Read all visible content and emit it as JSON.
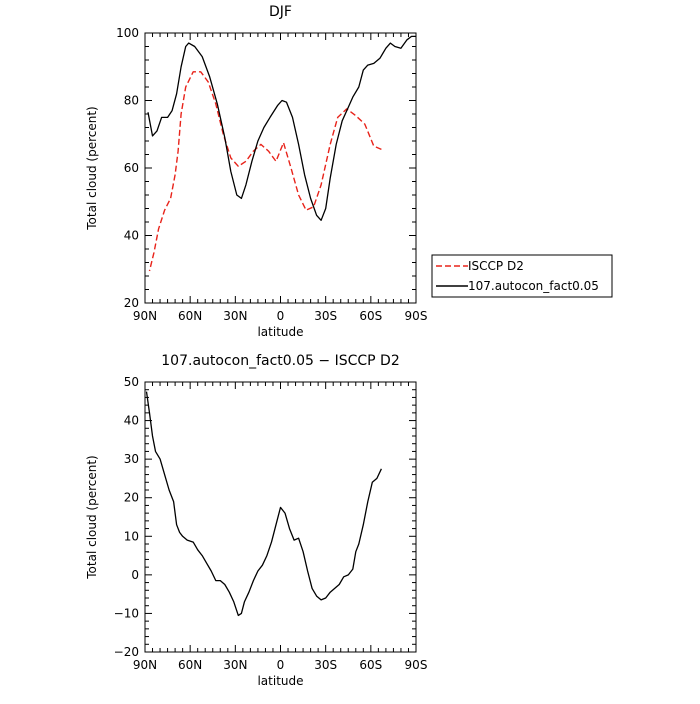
{
  "chart_data": [
    {
      "type": "line",
      "title": "DJF",
      "xlabel": "latitude",
      "ylabel": "Total cloud (percent)",
      "xlim": [
        90,
        -90
      ],
      "ylim": [
        20,
        100
      ],
      "x_ticks": [
        {
          "value": 90,
          "label": "90N"
        },
        {
          "value": 60,
          "label": "60N"
        },
        {
          "value": 30,
          "label": "30N"
        },
        {
          "value": 0,
          "label": "0"
        },
        {
          "value": -30,
          "label": "30S"
        },
        {
          "value": -60,
          "label": "60S"
        },
        {
          "value": -90,
          "label": "90S"
        }
      ],
      "y_ticks": [
        {
          "value": 20,
          "label": "20"
        },
        {
          "value": 40,
          "label": "40"
        },
        {
          "value": 60,
          "label": "60"
        },
        {
          "value": 80,
          "label": "80"
        },
        {
          "value": 100,
          "label": "100"
        }
      ],
      "legend_position": "right",
      "series": [
        {
          "name": "ISCCP D2",
          "color": "#e8231a",
          "dash": "dashed",
          "points": [
            [
              -67,
              65.5
            ],
            [
              -62,
              66.5
            ],
            [
              -56,
              73
            ],
            [
              -50,
              75.5
            ],
            [
              -44,
              77.5
            ],
            [
              -38,
              75
            ],
            [
              -33,
              67
            ],
            [
              -27,
              55
            ],
            [
              -22,
              48.5
            ],
            [
              -17,
              47.5
            ],
            [
              -12,
              52
            ],
            [
              -7,
              60
            ],
            [
              -2,
              67.5
            ],
            [
              3,
              62
            ],
            [
              8,
              65
            ],
            [
              13,
              67
            ],
            [
              18,
              65
            ],
            [
              23,
              62
            ],
            [
              28,
              60.5
            ],
            [
              33,
              63
            ],
            [
              38,
              70
            ],
            [
              43,
              79
            ],
            [
              48,
              85.5
            ],
            [
              53,
              88.5
            ],
            [
              58,
              88.5
            ],
            [
              63,
              84
            ],
            [
              66,
              76
            ],
            [
              68,
              65
            ],
            [
              70,
              58
            ],
            [
              73,
              51
            ],
            [
              77,
              47.5
            ],
            [
              81,
              42
            ],
            [
              84,
              35
            ],
            [
              87,
              29.5
            ]
          ]
        },
        {
          "name": "107.autocon_fact0.05",
          "color": "#000000",
          "dash": "solid",
          "points": [
            [
              -90,
              99
            ],
            [
              -87,
              99
            ],
            [
              -84,
              98
            ],
            [
              -80,
              95.5
            ],
            [
              -76,
              96
            ],
            [
              -73,
              97
            ],
            [
              -70,
              95.5
            ],
            [
              -66,
              92.5
            ],
            [
              -62,
              91
            ],
            [
              -58,
              90.5
            ],
            [
              -55,
              89
            ],
            [
              -52,
              84
            ],
            [
              -48,
              81
            ],
            [
              -45,
              78
            ],
            [
              -41,
              74
            ],
            [
              -37,
              67
            ],
            [
              -33,
              57
            ],
            [
              -30,
              48
            ],
            [
              -27,
              44.5
            ],
            [
              -24,
              46
            ],
            [
              -20,
              51
            ],
            [
              -16,
              58
            ],
            [
              -12,
              67
            ],
            [
              -8,
              75
            ],
            [
              -4,
              79.5
            ],
            [
              -1,
              80
            ],
            [
              2,
              78.5
            ],
            [
              7,
              75
            ],
            [
              11,
              72
            ],
            [
              15,
              68
            ],
            [
              19,
              62
            ],
            [
              23,
              55
            ],
            [
              26,
              51
            ],
            [
              29,
              52
            ],
            [
              33,
              59
            ],
            [
              37,
              69
            ],
            [
              42,
              79
            ],
            [
              47,
              87
            ],
            [
              52,
              93
            ],
            [
              57,
              96
            ],
            [
              61,
              97
            ],
            [
              63,
              96
            ],
            [
              66,
              90
            ],
            [
              69,
              82
            ],
            [
              72,
              77
            ],
            [
              75,
              75
            ],
            [
              79,
              75
            ],
            [
              82,
              71
            ],
            [
              85,
              69.5
            ],
            [
              88,
              76.5
            ]
          ]
        }
      ]
    },
    {
      "type": "line",
      "title": "107.autocon_fact0.05 − ISCCP D2",
      "xlabel": "latitude",
      "ylabel": "Total cloud (percent)",
      "xlim": [
        90,
        -90
      ],
      "ylim": [
        -20,
        50
      ],
      "x_ticks": [
        {
          "value": 90,
          "label": "90N"
        },
        {
          "value": 60,
          "label": "60N"
        },
        {
          "value": 30,
          "label": "30N"
        },
        {
          "value": 0,
          "label": "0"
        },
        {
          "value": -30,
          "label": "30S"
        },
        {
          "value": -60,
          "label": "60S"
        },
        {
          "value": -90,
          "label": "90S"
        }
      ],
      "y_ticks": [
        {
          "value": -20,
          "label": "−20"
        },
        {
          "value": -10,
          "label": "−10"
        },
        {
          "value": 0,
          "label": "0"
        },
        {
          "value": 10,
          "label": "10"
        },
        {
          "value": 20,
          "label": "20"
        },
        {
          "value": 30,
          "label": "30"
        },
        {
          "value": 40,
          "label": "40"
        },
        {
          "value": 50,
          "label": "50"
        }
      ],
      "series": [
        {
          "name": "",
          "color": "#000000",
          "dash": "solid",
          "points": [
            [
              -67,
              27.5
            ],
            [
              -64,
              25
            ],
            [
              -61,
              24
            ],
            [
              -58,
              19
            ],
            [
              -55,
              13
            ],
            [
              -52,
              8
            ],
            [
              -50,
              6
            ],
            [
              -48,
              1.5
            ],
            [
              -45,
              0
            ],
            [
              -42,
              -0.5
            ],
            [
              -39,
              -2.5
            ],
            [
              -36,
              -3.5
            ],
            [
              -33,
              -4.5
            ],
            [
              -30,
              -6
            ],
            [
              -27,
              -6.5
            ],
            [
              -24,
              -5.5
            ],
            [
              -21,
              -3.5
            ],
            [
              -18,
              1
            ],
            [
              -15,
              6
            ],
            [
              -12,
              9.5
            ],
            [
              -9,
              9
            ],
            [
              -6,
              12
            ],
            [
              -3,
              16
            ],
            [
              0,
              17.5
            ],
            [
              3,
              13
            ],
            [
              6,
              8.5
            ],
            [
              9,
              5
            ],
            [
              12,
              2.5
            ],
            [
              15,
              1
            ],
            [
              18,
              -1.5
            ],
            [
              21,
              -4.5
            ],
            [
              24,
              -7
            ],
            [
              26,
              -10
            ],
            [
              28,
              -10.5
            ],
            [
              31,
              -7
            ],
            [
              34,
              -4.5
            ],
            [
              37,
              -2.5
            ],
            [
              40,
              -1.5
            ],
            [
              43,
              -1.5
            ],
            [
              46,
              1
            ],
            [
              49,
              3
            ],
            [
              52,
              5
            ],
            [
              55,
              6.5
            ],
            [
              58,
              8.5
            ],
            [
              62,
              9
            ],
            [
              65,
              10
            ],
            [
              67,
              11
            ],
            [
              69,
              13
            ],
            [
              71,
              19
            ],
            [
              74,
              22
            ],
            [
              77,
              26
            ],
            [
              80,
              30
            ],
            [
              83,
              32
            ],
            [
              85,
              36
            ],
            [
              87,
              42
            ],
            [
              89,
              47.5
            ]
          ]
        }
      ]
    }
  ]
}
